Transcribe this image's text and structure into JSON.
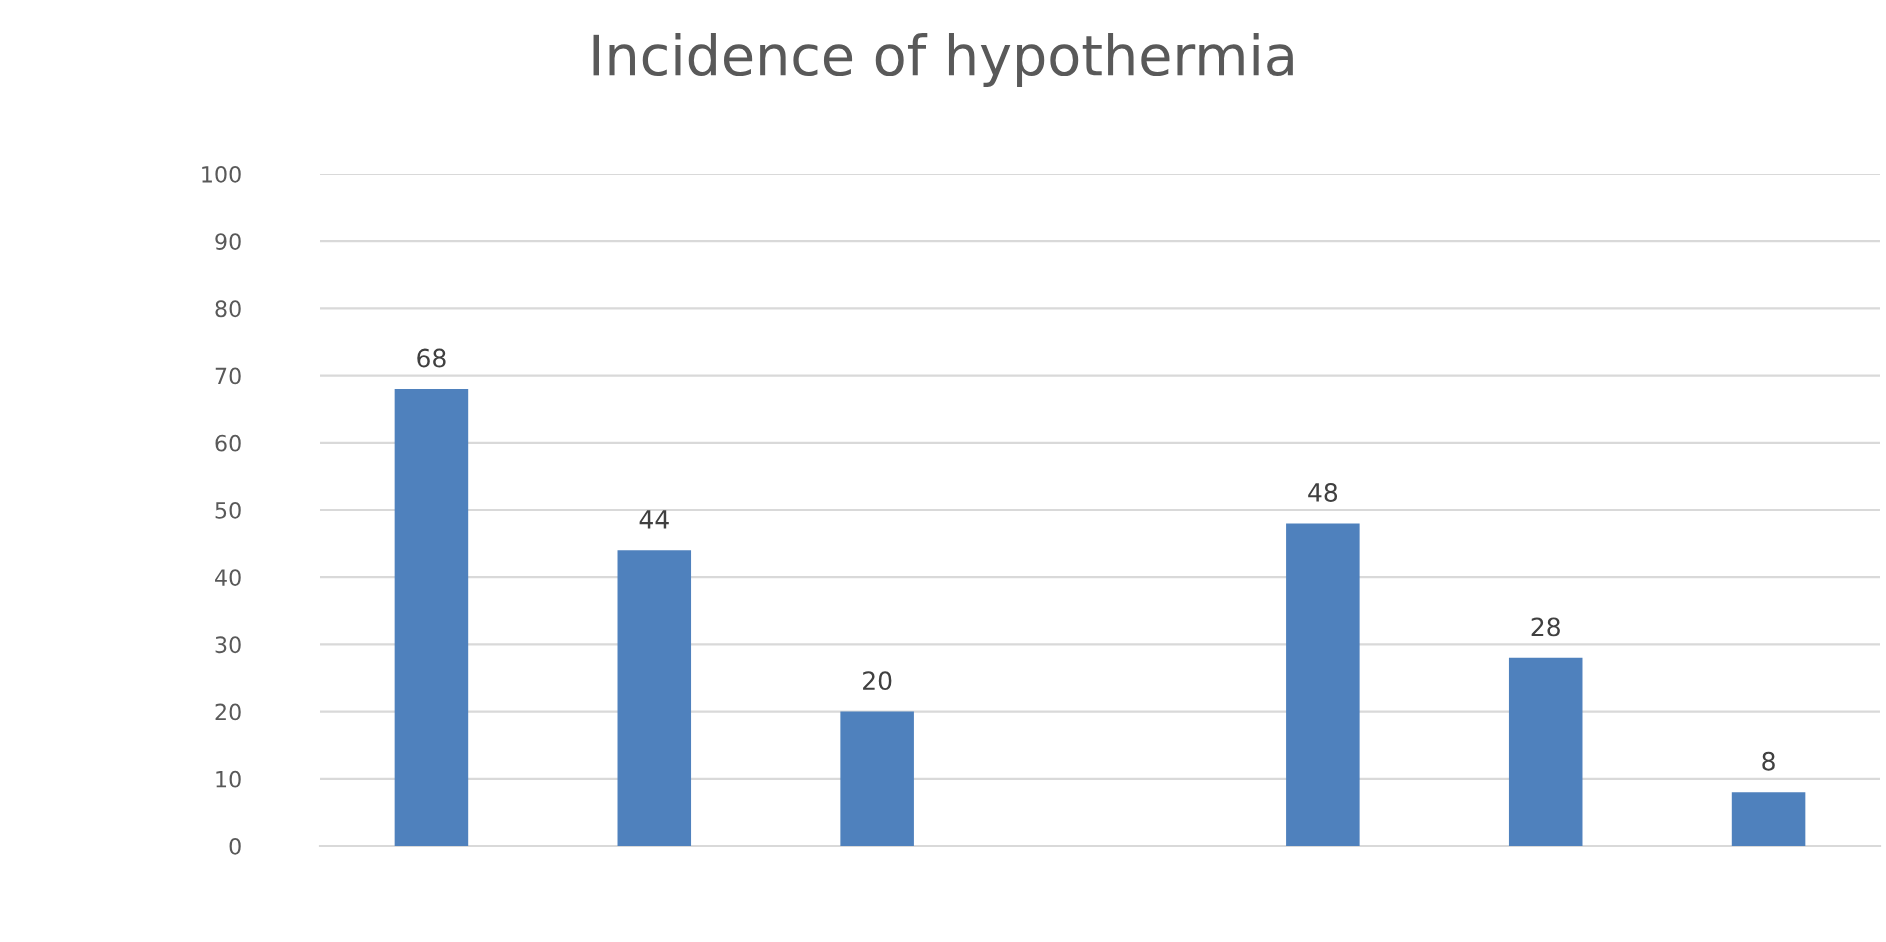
{
  "chart_data": {
    "type": "bar",
    "title": "Incidence of hypothermia",
    "categories": [
      null,
      null,
      null,
      null,
      null,
      null,
      null
    ],
    "values": [
      68,
      44,
      20,
      null,
      48,
      28,
      8
    ],
    "color": "#4f81bd",
    "ylim": [
      0,
      100
    ],
    "yticks": [
      0,
      10,
      20,
      30,
      40,
      50,
      60,
      70,
      80,
      90,
      100
    ],
    "grid": "y",
    "data_labels": true
  }
}
